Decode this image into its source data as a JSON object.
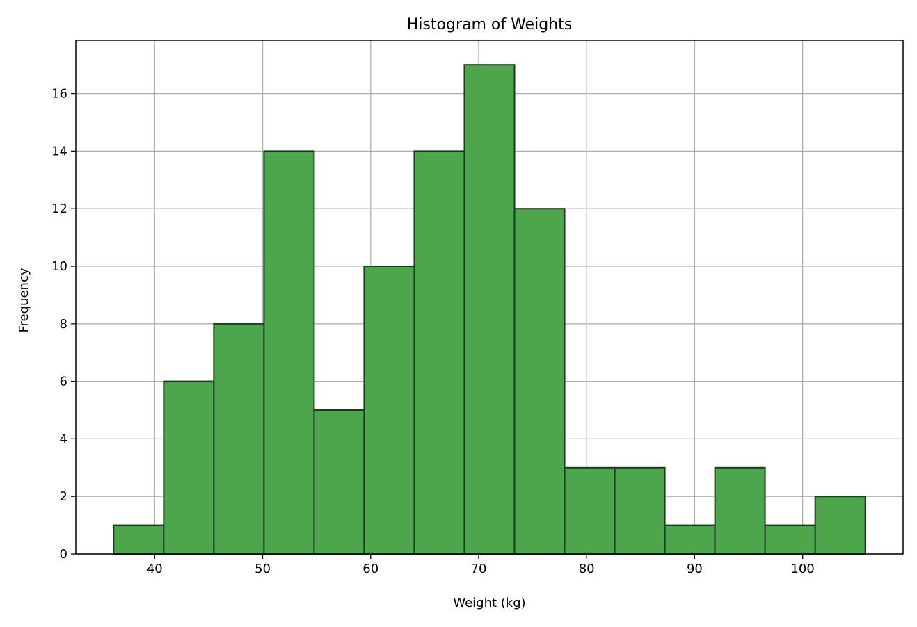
{
  "colors": {
    "bar_fill": "#4ca64c",
    "bar_edge": "#1e3a1e",
    "grid": "#b0b0b0",
    "axis": "#000000",
    "background": "#ffffff"
  },
  "chart_data": {
    "type": "bar",
    "subtype": "histogram",
    "title": "Histogram of Weights",
    "xlabel": "Weight (kg)",
    "ylabel": "Frequency",
    "bin_edges": [
      36.2,
      40.84,
      45.48,
      50.12,
      54.76,
      59.4,
      64.04,
      68.68,
      73.32,
      77.96,
      82.6,
      87.24,
      91.88,
      96.52,
      101.16,
      105.8
    ],
    "values": [
      1,
      6,
      8,
      14,
      5,
      10,
      14,
      17,
      12,
      3,
      3,
      1,
      3,
      1,
      2
    ],
    "xlim": [
      32.7,
      109.3
    ],
    "ylim": [
      0,
      17.85
    ],
    "xticks": [
      40,
      50,
      60,
      70,
      80,
      90,
      100
    ],
    "yticks": [
      0,
      2,
      4,
      6,
      8,
      10,
      12,
      14,
      16
    ],
    "grid": true,
    "legend": "none"
  }
}
